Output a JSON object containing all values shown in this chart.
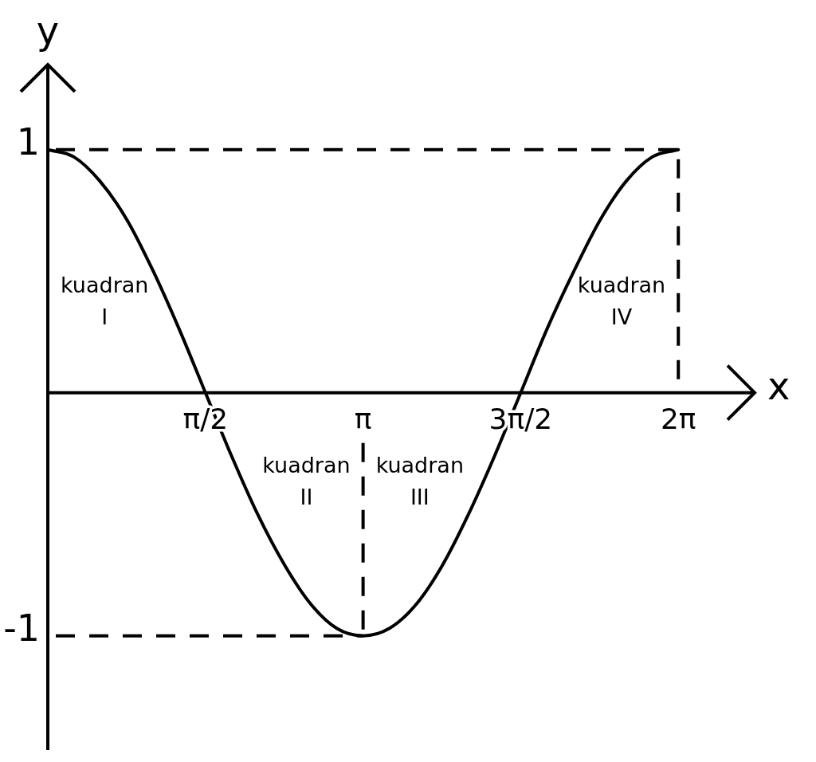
{
  "chart_data": {
    "type": "line",
    "x": [
      0,
      0.26,
      0.52,
      0.79,
      1.05,
      1.31,
      1.57,
      1.83,
      2.09,
      2.36,
      2.62,
      2.88,
      3.14,
      3.4,
      3.67,
      3.93,
      4.19,
      4.45,
      4.71,
      4.97,
      5.24,
      5.5,
      5.76,
      6.02,
      6.28
    ],
    "values": [
      1,
      0.97,
      0.87,
      0.71,
      0.5,
      0.26,
      0,
      -0.26,
      -0.5,
      -0.71,
      -0.87,
      -0.97,
      -1,
      -0.97,
      -0.87,
      -0.71,
      -0.5,
      -0.26,
      0,
      0.26,
      0.5,
      0.71,
      0.87,
      0.97,
      1
    ],
    "color": "#000000",
    "xlim": [
      0,
      7.04
    ],
    "ylim": [
      -1.47,
      1.35
    ],
    "xticks": [
      {
        "value": 1.57,
        "label": "π/2"
      },
      {
        "value": 3.14,
        "label": "π"
      },
      {
        "value": 4.71,
        "label": "3π/2"
      },
      {
        "value": 6.28,
        "label": "2π"
      }
    ],
    "yticks": [
      -1,
      1
    ],
    "xlabel": "x",
    "ylabel": "y",
    "ref_lines": [
      {
        "axis": "y",
        "value": 1,
        "line_style": "dashed"
      },
      {
        "axis": "x",
        "value": 6.28,
        "line_style": "dashed"
      },
      {
        "axis": "x",
        "value": 3.14,
        "line_style": "dashed"
      },
      {
        "axis": "y",
        "value": -1,
        "line_style": "dashed"
      }
    ],
    "annotations": [
      "kuadran\nI",
      "kuadran\nII",
      "kuadran\nIII",
      "kuadran\nIV"
    ]
  }
}
